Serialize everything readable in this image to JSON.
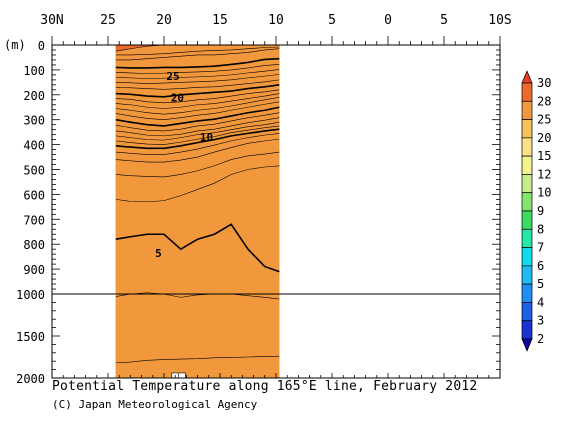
{
  "chart_data": {
    "type": "heatmap",
    "title": "Potential Temperature along 165°E line, February 2012",
    "credit": "(C) Japan Meteorological Agency",
    "x": {
      "ticks": [
        {
          "v": 30,
          "label": "30N"
        },
        {
          "v": 25,
          "label": "25"
        },
        {
          "v": 20,
          "label": "20"
        },
        {
          "v": 15,
          "label": "15"
        },
        {
          "v": 10,
          "label": "10"
        },
        {
          "v": 5,
          "label": "5"
        },
        {
          "v": 0,
          "label": "0"
        },
        {
          "v": -5,
          "label": "5"
        },
        {
          "v": -10,
          "label": "10S"
        }
      ],
      "range": [
        30,
        -10
      ],
      "data_range": [
        24.3,
        9.7
      ]
    },
    "y": {
      "unit_label": "(m)",
      "ticks_upper": [
        0,
        100,
        200,
        300,
        400,
        500,
        600,
        700,
        800,
        900,
        1000
      ],
      "ticks_lower": [
        1500,
        2000
      ],
      "upper_range": [
        0,
        1000
      ],
      "lower_range": [
        1000,
        2000
      ]
    },
    "colorbar": {
      "levels": [
        "2",
        "3",
        "4",
        "5",
        "6",
        "7",
        "8",
        "9",
        "10",
        "12",
        "15",
        "20",
        "25",
        "28",
        "30"
      ],
      "colors": [
        "#0c07a0",
        "#1932d2",
        "#1c60e8",
        "#1e8ef2",
        "#1ebcf4",
        "#10dbea",
        "#26e6a8",
        "#3cdc64",
        "#84e46e",
        "#c8ec8a",
        "#f4f48e",
        "#fae088",
        "#f6c25c",
        "#f2983c",
        "#ec6a2c",
        "#e64022"
      ]
    },
    "contour_labels": [
      {
        "value": "25",
        "lat": 19.2,
        "depth": 125
      },
      {
        "value": "20",
        "lat": 18.8,
        "depth": 210
      },
      {
        "value": "10",
        "lat": 16.2,
        "depth": 370
      },
      {
        "value": "5",
        "lat": 20.5,
        "depth": 835
      }
    ],
    "profile": {
      "lats": [
        24.3,
        23,
        21.5,
        20,
        18.5,
        17,
        15.5,
        14,
        12.5,
        11,
        9.7
      ],
      "isotherms": [
        {
          "t": 28,
          "depths": [
            25,
            15,
            5,
            0,
            0,
            0,
            0,
            0,
            0,
            0,
            0
          ]
        },
        {
          "t": 27,
          "depths": [
            40,
            40,
            38,
            35,
            30,
            25,
            22,
            20,
            15,
            10,
            8
          ]
        },
        {
          "t": 26,
          "depths": [
            60,
            60,
            55,
            50,
            45,
            40,
            40,
            35,
            30,
            20,
            15
          ]
        },
        {
          "t": 25,
          "depths": [
            90,
            92,
            92,
            90,
            90,
            88,
            85,
            78,
            70,
            58,
            55
          ]
        },
        {
          "t": 24,
          "depths": [
            110,
            112,
            115,
            113,
            110,
            108,
            105,
            100,
            92,
            82,
            78
          ]
        },
        {
          "t": 23,
          "depths": [
            130,
            132,
            135,
            133,
            130,
            128,
            125,
            120,
            112,
            105,
            98
          ]
        },
        {
          "t": 22,
          "depths": [
            150,
            152,
            155,
            153,
            150,
            148,
            145,
            140,
            132,
            125,
            118
          ]
        },
        {
          "t": 21,
          "depths": [
            170,
            172,
            175,
            178,
            175,
            170,
            168,
            162,
            155,
            148,
            140
          ]
        },
        {
          "t": 20,
          "depths": [
            195,
            198,
            205,
            208,
            200,
            195,
            190,
            185,
            175,
            168,
            160
          ]
        },
        {
          "t": 19,
          "depths": [
            215,
            218,
            228,
            232,
            228,
            220,
            215,
            205,
            195,
            188,
            180
          ]
        },
        {
          "t": 18,
          "depths": [
            235,
            240,
            250,
            255,
            250,
            240,
            235,
            225,
            215,
            205,
            195
          ]
        },
        {
          "t": 17,
          "depths": [
            255,
            262,
            272,
            278,
            272,
            262,
            255,
            245,
            232,
            220,
            210
          ]
        },
        {
          "t": 16,
          "depths": [
            275,
            285,
            295,
            300,
            292,
            282,
            275,
            262,
            250,
            238,
            228
          ]
        },
        {
          "t": 15,
          "depths": [
            300,
            310,
            320,
            325,
            315,
            305,
            298,
            285,
            272,
            262,
            250
          ]
        },
        {
          "t": 14,
          "depths": [
            322,
            332,
            342,
            345,
            338,
            325,
            318,
            305,
            292,
            282,
            272
          ]
        },
        {
          "t": 13,
          "depths": [
            345,
            352,
            362,
            365,
            358,
            345,
            338,
            325,
            312,
            302,
            292
          ]
        },
        {
          "t": 12,
          "depths": [
            365,
            372,
            380,
            382,
            372,
            360,
            352,
            340,
            328,
            320,
            310
          ]
        },
        {
          "t": 11,
          "depths": [
            385,
            392,
            398,
            400,
            390,
            378,
            368,
            352,
            342,
            332,
            325
          ]
        },
        {
          "t": 10,
          "depths": [
            405,
            410,
            415,
            415,
            405,
            392,
            380,
            365,
            355,
            345,
            338
          ]
        },
        {
          "t": 9,
          "depths": [
            430,
            435,
            440,
            440,
            430,
            418,
            402,
            385,
            372,
            362,
            355
          ]
        },
        {
          "t": 8,
          "depths": [
            460,
            465,
            470,
            470,
            462,
            450,
            430,
            412,
            395,
            385,
            378
          ]
        },
        {
          "t": 7,
          "depths": [
            520,
            525,
            528,
            530,
            520,
            505,
            485,
            460,
            445,
            438,
            430
          ]
        },
        {
          "t": 6,
          "depths": [
            620,
            628,
            630,
            625,
            605,
            580,
            555,
            520,
            500,
            490,
            485
          ]
        },
        {
          "t": 5,
          "depths": [
            780,
            770,
            760,
            760,
            820,
            780,
            760,
            720,
            820,
            890,
            910
          ]
        },
        {
          "t": 4,
          "depths": [
            1030,
            1000,
            995,
            1000,
            1040,
            1010,
            1000,
            1000,
            1020,
            1040,
            1060
          ]
        },
        {
          "t": 3,
          "depths": [
            1820,
            1810,
            1790,
            1780,
            1775,
            1770,
            1760,
            1755,
            1750,
            1745,
            1740
          ]
        }
      ]
    },
    "missing_data_boxes": [
      {
        "lat_from": 19.3,
        "lat_to": 18.1,
        "depth_from": 1940,
        "depth_to": 2000
      }
    ]
  }
}
